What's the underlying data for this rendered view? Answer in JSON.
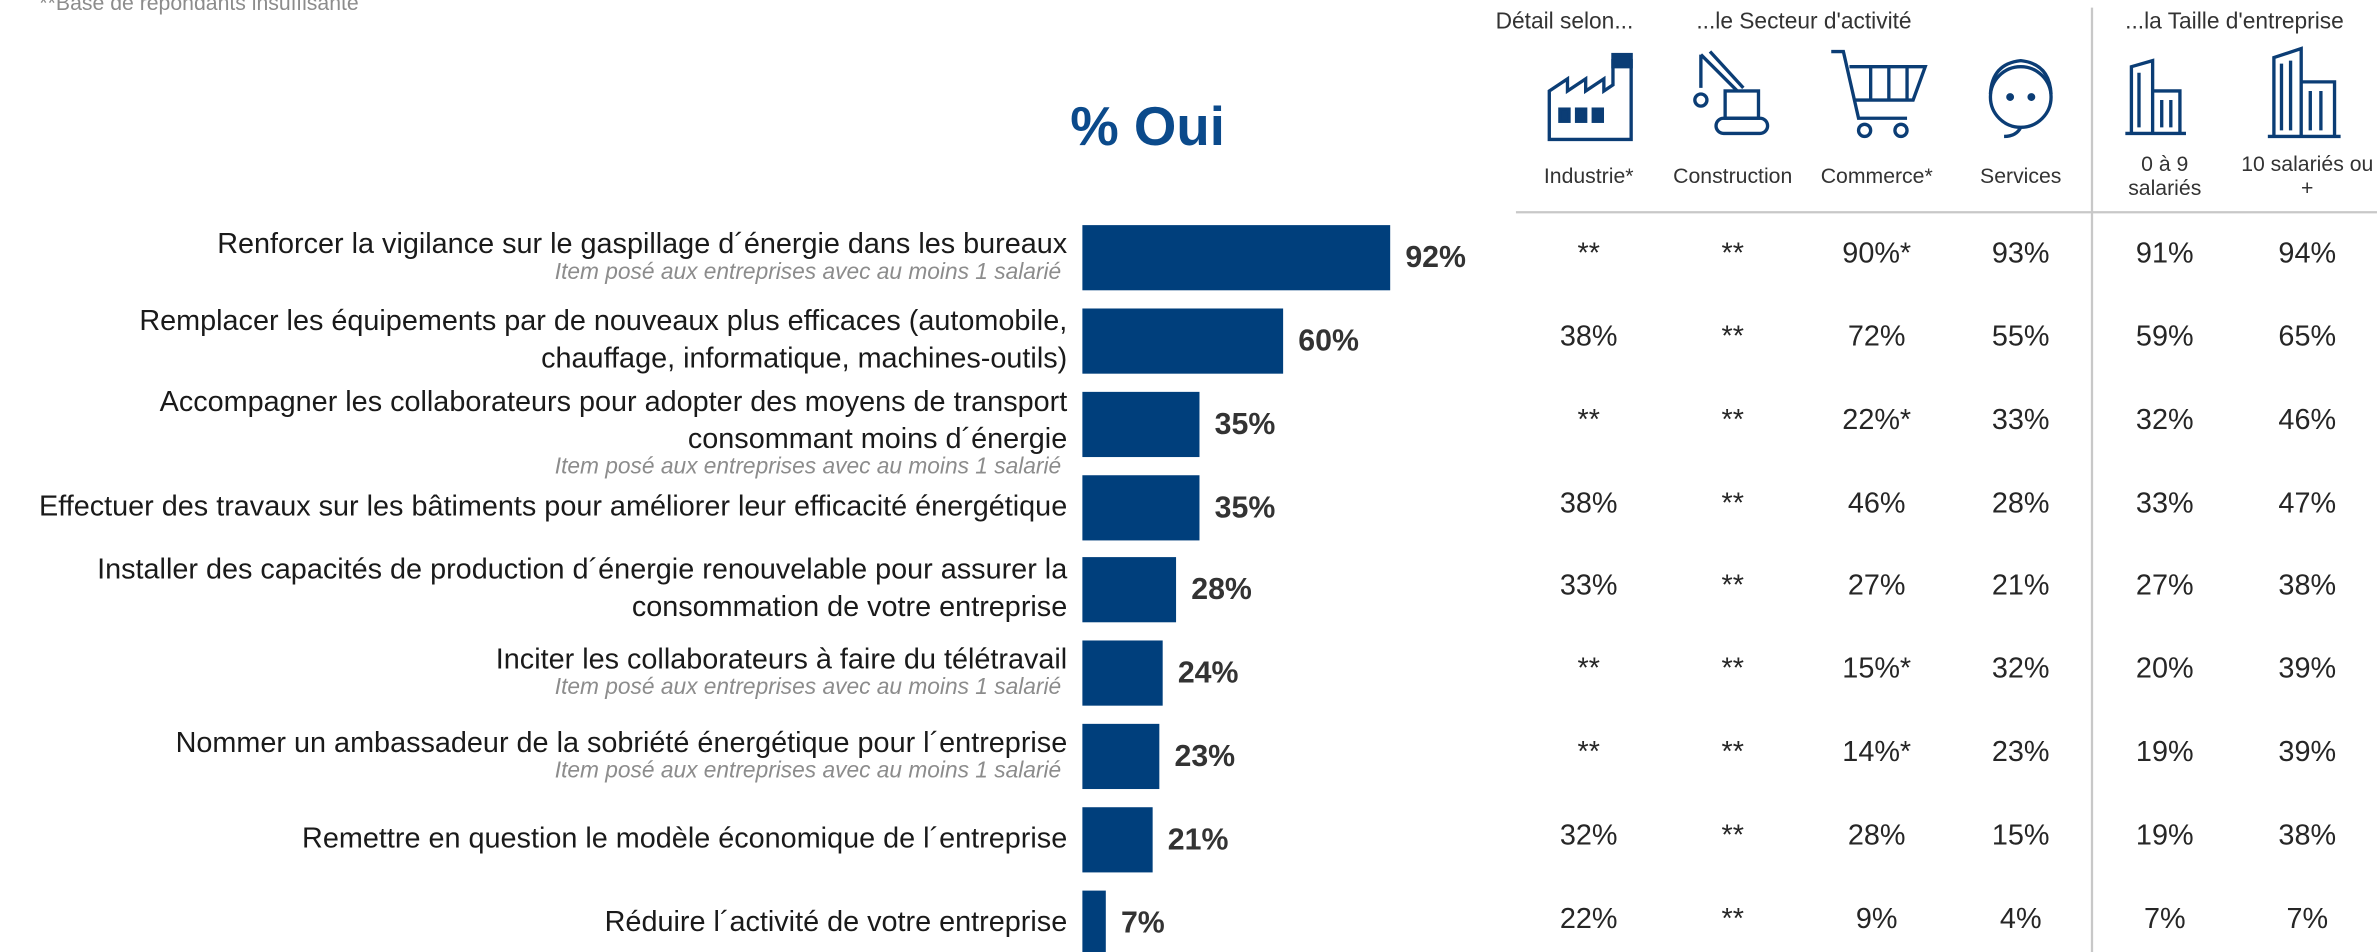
{
  "footnote": "**Base de répondants insuffisante",
  "chart_data": {
    "type": "bar",
    "orientation": "horizontal",
    "title": "% Oui",
    "color": "#003f7c",
    "categories": [
      [
        "Renforcer la vigilance sur le gaspillage d´énergie dans les bureaux"
      ],
      [
        "Remplacer les équipements par de nouveaux plus efficaces (automobile,",
        "chauffage, informatique, machines-outils)"
      ],
      [
        "Accompagner les collaborateurs pour adopter des moyens de transport",
        "consommant moins d´énergie"
      ],
      [
        "Effectuer des travaux sur les bâtiments pour améliorer leur efficacité énergétique"
      ],
      [
        "Installer des capacités de production d´énergie renouvelable pour assurer la",
        "consommation de votre entreprise"
      ],
      [
        "Inciter les collaborateurs à faire du télétravail"
      ],
      [
        "Nommer un ambassadeur de la sobriété énergétique pour l´entreprise"
      ],
      [
        "Remettre en question le modèle économique de l´entreprise"
      ],
      [
        "Réduire l´activité de votre entreprise"
      ]
    ],
    "notes": [
      "Item posé aux entreprises avec au moins 1 salarié",
      null,
      "Item posé aux entreprises avec au moins 1 salarié",
      null,
      null,
      "Item posé aux entreprises avec au moins 1 salarié",
      "Item posé aux entreprises avec au moins 1 salarié",
      null,
      null
    ],
    "values": [
      92,
      60,
      35,
      35,
      28,
      24,
      23,
      21,
      7
    ],
    "value_labels": [
      "92%",
      "60%",
      "35%",
      "35%",
      "28%",
      "24%",
      "23%",
      "21%",
      "7%"
    ]
  },
  "table": {
    "groups": [
      "Détail selon...",
      "...le Secteur d'activité",
      "...la Taille d'entreprise"
    ],
    "columns": [
      [
        "Industrie*"
      ],
      [
        "Construction"
      ],
      [
        "Commerce*"
      ],
      [
        "Services"
      ],
      [
        "0 à 9",
        "salariés"
      ],
      [
        "10 salariés ou",
        "+"
      ]
    ],
    "rows": [
      [
        "**",
        "**",
        "90%*",
        "93%",
        "91%",
        "94%"
      ],
      [
        "38%",
        "**",
        "72%",
        "55%",
        "59%",
        "65%"
      ],
      [
        "**",
        "**",
        "22%*",
        "33%",
        "32%",
        "46%"
      ],
      [
        "38%",
        "**",
        "46%",
        "28%",
        "33%",
        "47%"
      ],
      [
        "33%",
        "**",
        "27%",
        "21%",
        "27%",
        "38%"
      ],
      [
        "**",
        "**",
        "15%*",
        "32%",
        "20%",
        "39%"
      ],
      [
        "**",
        "**",
        "14%*",
        "23%",
        "19%",
        "39%"
      ],
      [
        "32%",
        "**",
        "28%",
        "15%",
        "19%",
        "38%"
      ],
      [
        "22%",
        "**",
        "9%",
        "4%",
        "7%",
        "7%"
      ]
    ]
  }
}
